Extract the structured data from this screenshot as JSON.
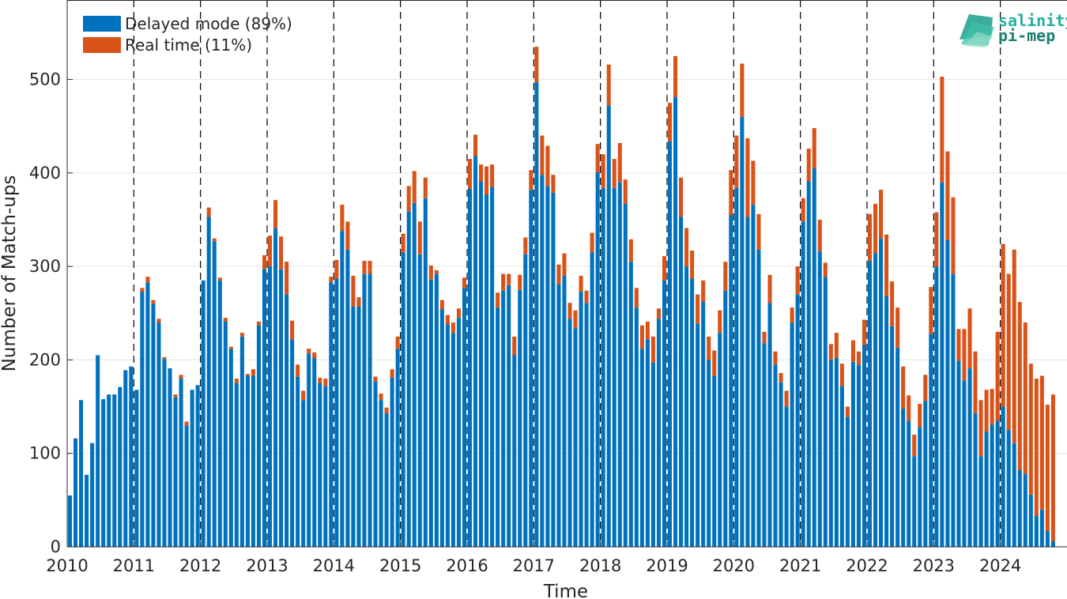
{
  "chart_data": {
    "type": "bar",
    "stacked": true,
    "x_start": "2010-01",
    "x_interval": "month",
    "xlabel": "Time",
    "ylabel": "Number of Match-ups",
    "ylim": [
      0,
      585
    ],
    "xlim": [
      "2010-01",
      "2024-12"
    ],
    "xticks": [
      "2010",
      "2011",
      "2012",
      "2013",
      "2014",
      "2015",
      "2016",
      "2017",
      "2018",
      "2019",
      "2020",
      "2021",
      "2022",
      "2023",
      "2024"
    ],
    "yticks": [
      0,
      100,
      200,
      300,
      400,
      500
    ],
    "grid": "horizontal",
    "year_separators": "dashed vertical lines at each January",
    "legend_position": "top-left",
    "series": [
      {
        "name": "Delayed mode (89%)",
        "color": "#0072BD",
        "values": [
          55,
          116,
          157,
          77,
          111,
          205,
          158,
          163,
          163,
          171,
          189,
          193,
          168,
          273,
          283,
          260,
          240,
          201,
          191,
          160,
          180,
          130,
          168,
          173,
          285,
          353,
          327,
          285,
          241,
          212,
          175,
          225,
          183,
          183,
          237,
          297,
          300,
          341,
          297,
          270,
          222,
          182,
          157,
          207,
          202,
          175,
          172,
          283,
          287,
          338,
          318,
          257,
          257,
          292,
          292,
          177,
          157,
          143,
          181,
          212,
          315,
          359,
          368,
          313,
          373,
          286,
          292,
          254,
          238,
          229,
          245,
          277,
          383,
          418,
          391,
          377,
          385,
          256,
          274,
          280,
          205,
          275,
          313,
          382,
          497,
          398,
          386,
          379,
          281,
          290,
          244,
          234,
          273,
          261,
          315,
          401,
          384,
          472,
          384,
          390,
          367,
          305,
          256,
          212,
          222,
          197,
          244,
          285,
          434,
          481,
          353,
          300,
          287,
          239,
          262,
          200,
          183,
          229,
          274,
          355,
          384,
          460,
          353,
          366,
          318,
          218,
          261,
          195,
          176,
          150,
          240,
          270,
          348,
          391,
          405,
          316,
          289,
          200,
          202,
          172,
          139,
          198,
          195,
          216,
          306,
          314,
          330,
          268,
          236,
          213,
          148,
          135,
          97,
          128,
          156,
          228,
          300,
          390,
          328,
          292,
          199,
          178,
          191,
          143,
          97,
          123,
          131,
          135,
          150,
          125,
          111,
          82,
          78,
          56,
          33,
          40,
          17,
          6
        ]
      },
      {
        "name": "Real time (11%)",
        "color": "#D95319",
        "values": [
          0,
          0,
          0,
          0,
          0,
          0,
          0,
          0,
          0,
          0,
          0,
          0,
          0,
          4,
          6,
          4,
          4,
          2,
          0,
          3,
          4,
          4,
          0,
          0,
          0,
          10,
          3,
          3,
          4,
          2,
          5,
          4,
          2,
          7,
          4,
          15,
          33,
          30,
          35,
          35,
          20,
          13,
          10,
          5,
          6,
          6,
          8,
          6,
          20,
          28,
          30,
          33,
          10,
          14,
          14,
          5,
          7,
          6,
          9,
          13,
          20,
          27,
          34,
          35,
          22,
          15,
          4,
          10,
          10,
          11,
          10,
          11,
          32,
          23,
          18,
          30,
          24,
          16,
          18,
          12,
          20,
          16,
          18,
          21,
          38,
          42,
          43,
          19,
          21,
          24,
          17,
          19,
          17,
          13,
          21,
          30,
          36,
          44,
          31,
          42,
          26,
          24,
          21,
          25,
          19,
          28,
          11,
          26,
          41,
          44,
          42,
          41,
          30,
          31,
          23,
          25,
          27,
          24,
          31,
          48,
          56,
          57,
          84,
          47,
          38,
          12,
          30,
          14,
          10,
          17,
          16,
          30,
          25,
          35,
          43,
          34,
          15,
          17,
          27,
          24,
          11,
          23,
          14,
          27,
          50,
          53,
          52,
          66,
          48,
          43,
          45,
          27,
          23,
          25,
          28,
          50,
          58,
          113,
          95,
          82,
          34,
          55,
          64,
          66,
          60,
          45,
          38,
          95,
          174,
          167,
          207,
          180,
          162,
          140,
          147,
          143,
          135,
          157
        ]
      }
    ]
  },
  "logo": {
    "line1": "salinity",
    "line2": "pi-mep",
    "color1": "#22AFA0",
    "color2": "#1B7F72"
  }
}
